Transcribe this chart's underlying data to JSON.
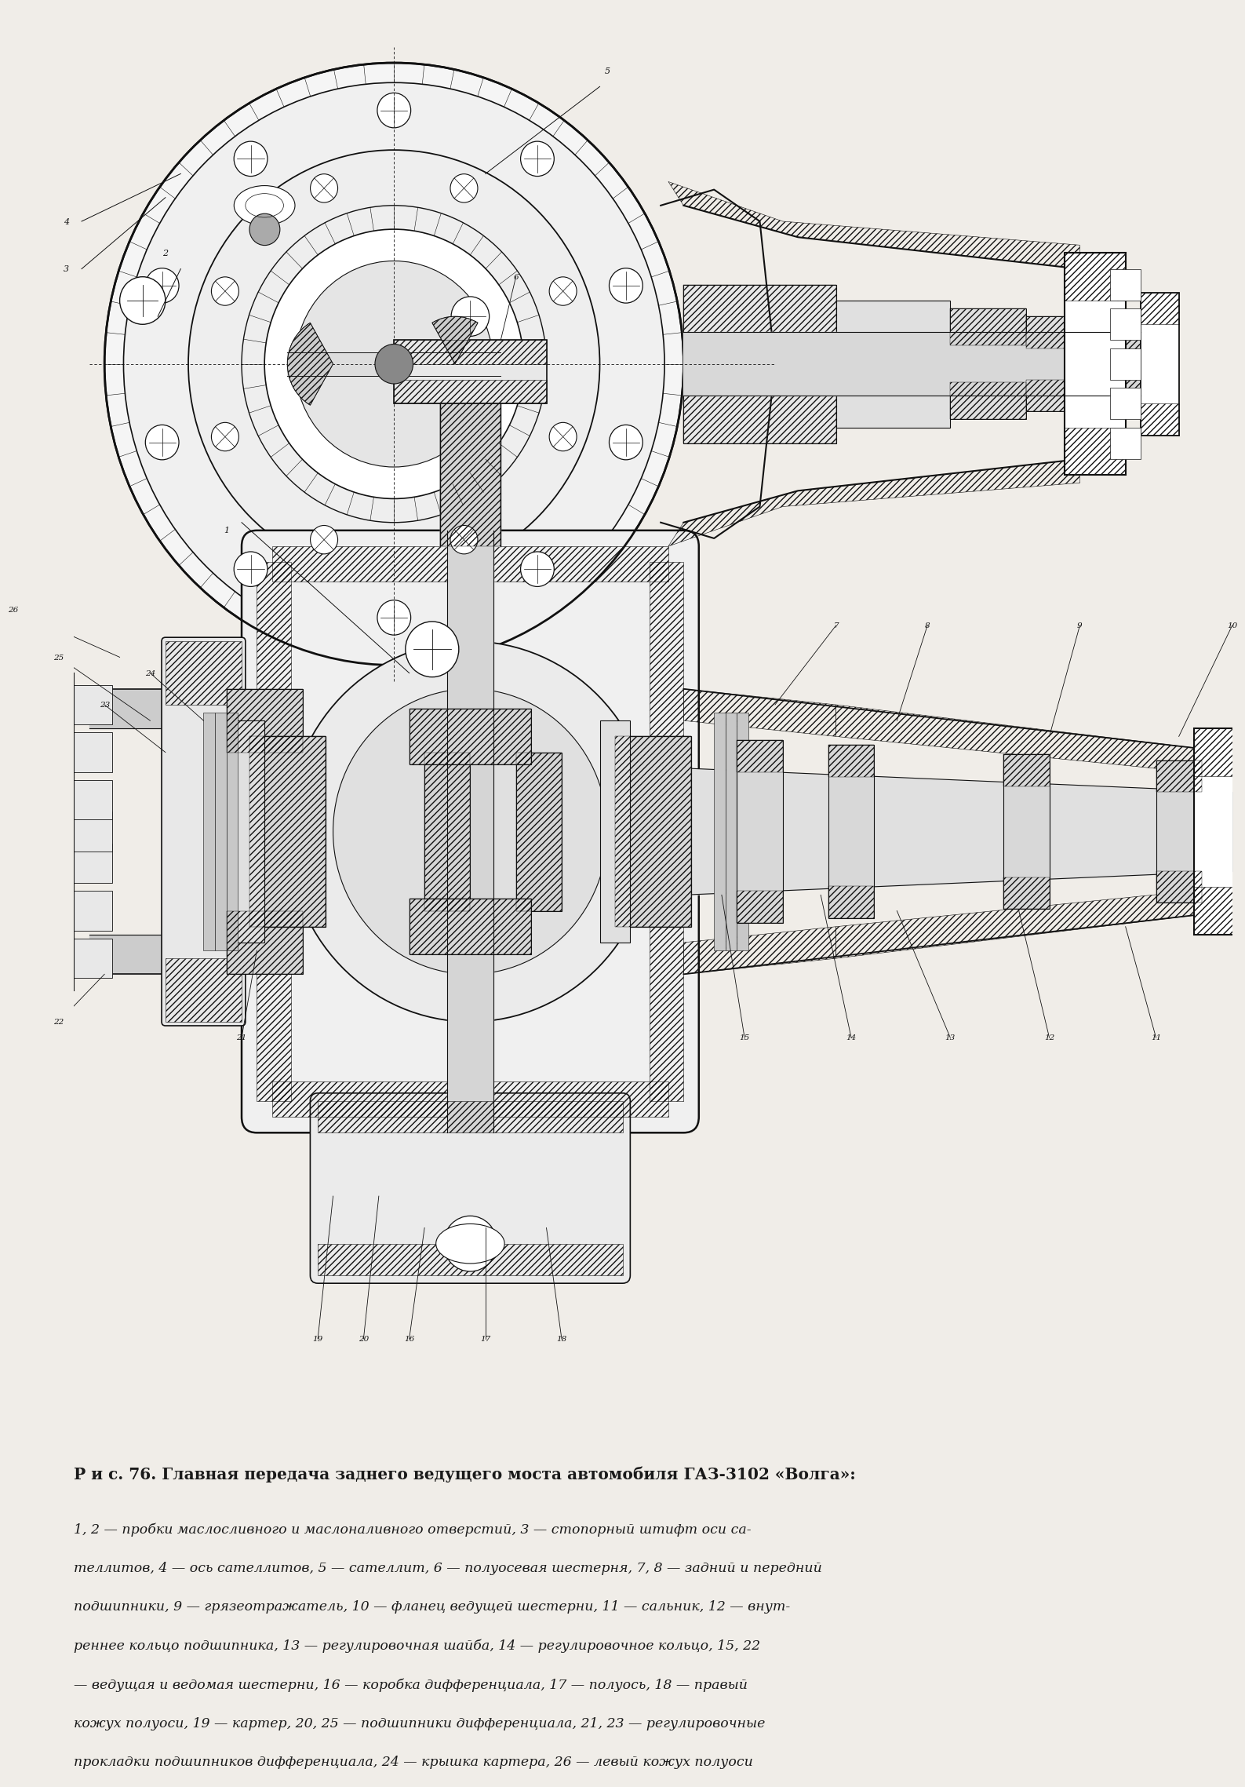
{
  "title_line": "Р и с. 76. Главная передача заднего ведущего моста автомобиля ГАЗ-3102 «Волга»:",
  "caption_lines": [
    "1, 2 — пробки маслосливного и маслоналивного отверстий, 3 — стопорный штифт оси са-",
    "теллитов, 4 — ось сателлитов, 5 — сателлит, 6 — полуосевая шестерня, 7, 8 — задний и передний",
    "подшипники, 9 — грязеотражатель, 10 — фланец ведущей шестерни, 11 — сальник, 12 — внут-",
    "реннее кольцо подшипника, 13 — регулировочная шайба, 14 — регулировочное кольцо, 15, 22",
    "— ведущая и ведомая шестерни, 16 — коробка дифференциала, 17 — полуось, 18 — правый",
    "кожух полуоси, 19 — картер, 20, 25 — подшипники дифференциала, 21, 23 — регулировочные",
    "прокладки подшипников дифференциала, 24 — крышка картера, 26 — левый кожух полуоси"
  ],
  "bg_color": "#f0ede8",
  "text_color": "#1a1a1a",
  "title_fontsize": 14.5,
  "caption_fontsize": 12.5,
  "fig_width": 15.22,
  "fig_height": 22.69
}
